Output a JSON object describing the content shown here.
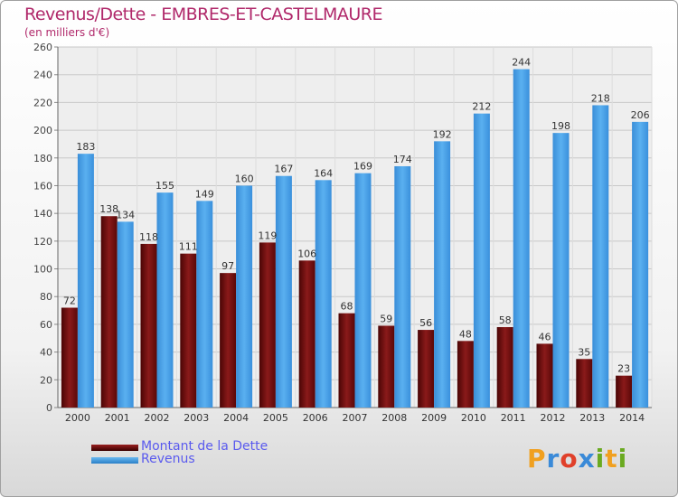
{
  "chart_data": {
    "type": "bar",
    "title": "Revenus/Dette - EMBRES-ET-CASTELMAURE",
    "subtitle": "(en milliers d'€)",
    "categories": [
      "2000",
      "2001",
      "2002",
      "2003",
      "2004",
      "2005",
      "2006",
      "2007",
      "2008",
      "2009",
      "2010",
      "2011",
      "2012",
      "2013",
      "2014"
    ],
    "series": [
      {
        "name": "Montant de la Dette",
        "color": "#7a1010",
        "values": [
          72,
          138,
          118,
          111,
          97,
          119,
          106,
          68,
          59,
          56,
          48,
          58,
          46,
          35,
          23
        ]
      },
      {
        "name": "Revenus",
        "color": "#4aa3e8",
        "values": [
          183,
          134,
          155,
          149,
          160,
          167,
          164,
          169,
          174,
          192,
          212,
          244,
          198,
          218,
          206
        ]
      }
    ],
    "ylim": [
      0,
      260
    ],
    "yticks": [
      0,
      20,
      40,
      60,
      80,
      100,
      120,
      140,
      160,
      180,
      200,
      220,
      240,
      260
    ],
    "grid": true,
    "legend": "bottom-left"
  },
  "logo": {
    "letters": [
      "P",
      "r",
      "o",
      "x",
      "i",
      "t",
      "i"
    ]
  }
}
